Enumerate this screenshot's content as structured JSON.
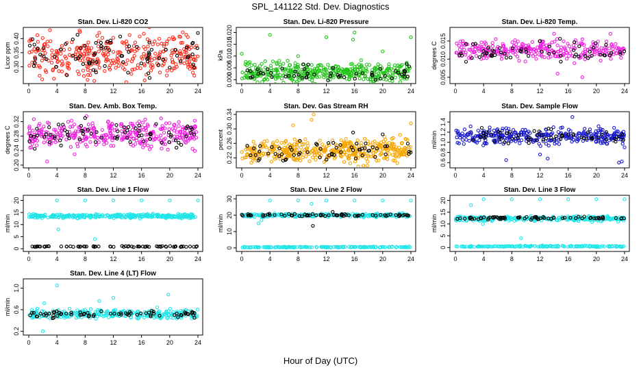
{
  "figure_title": "SPL_141122  Std. Dev. Diagnostics",
  "x_axis_label": "Hour of Day (UTC)",
  "chart_data": [
    {
      "type": "scatter",
      "title": "Stan. Dev. Li-820 CO2",
      "ylabel": "Licor ppm",
      "xlim": [
        0,
        24
      ],
      "ylim": [
        0.25,
        0.43
      ],
      "xticks": [
        0,
        4,
        8,
        12,
        16,
        20,
        24
      ],
      "yticks": [
        0.3,
        0.35,
        0.4
      ],
      "ytick_labels": [
        "0.30",
        "0.35",
        "0.40"
      ],
      "series": [
        {
          "color": "#ff2a1a",
          "role": "main",
          "center": 0.34,
          "spread": 0.04,
          "n": 340,
          "outliers": [
            [
              9.3,
              0.25
            ],
            [
              3,
              0.43
            ]
          ]
        },
        {
          "color": "#000000",
          "role": "overlay",
          "center": 0.34,
          "spread": 0.03,
          "n": 80,
          "outliers": [
            [
              24,
              0.42
            ]
          ]
        }
      ]
    },
    {
      "type": "scatter",
      "title": "Stan. Dev. Li-820 Pressure",
      "ylabel": "kPa",
      "xlim": [
        0,
        24
      ],
      "ylim": [
        -0.0005,
        0.021
      ],
      "xticks": [
        0,
        4,
        8,
        12,
        16,
        20,
        24
      ],
      "yticks": [
        0.0,
        0.005,
        0.01,
        0.015,
        0.02
      ],
      "ytick_labels": [
        "0.000",
        "0.005",
        "0.010",
        "0.015",
        "0.020"
      ],
      "series": [
        {
          "color": "#22c41a",
          "role": "main",
          "center": 0.003,
          "spread": 0.002,
          "n": 420,
          "outliers": [
            [
              0,
              0.011
            ],
            [
              4,
              0.019
            ],
            [
              8,
              0.01
            ],
            [
              12,
              0.018
            ],
            [
              15.8,
              0.017
            ],
            [
              16,
              0.02
            ],
            [
              20,
              0.012
            ],
            [
              24,
              0.018
            ]
          ]
        },
        {
          "color": "#000000",
          "role": "overlay",
          "center": 0.002,
          "spread": 0.002,
          "n": 60,
          "outliers": []
        }
      ]
    },
    {
      "type": "scatter",
      "title": "Stan. Dev. Li-820 Temp.",
      "ylabel": "degrees C",
      "xlim": [
        0,
        24
      ],
      "ylim": [
        0.004,
        0.018
      ],
      "xticks": [
        0,
        4,
        8,
        12,
        16,
        20,
        24
      ],
      "yticks": [
        0.005,
        0.01,
        0.015
      ],
      "ytick_labels": [
        "0.005",
        "0.010",
        "0.015"
      ],
      "series": [
        {
          "color": "#f020e0",
          "role": "main",
          "center": 0.0125,
          "spread": 0.0012,
          "n": 300,
          "outliers": [
            [
              14,
              0.017
            ],
            [
              14.5,
              0.006
            ],
            [
              18,
              0.005
            ],
            [
              22,
              0.017
            ]
          ]
        },
        {
          "color": "#000000",
          "role": "overlay",
          "center": 0.012,
          "spread": 0.0012,
          "n": 60,
          "outliers": [
            [
              12,
              0.015
            ]
          ]
        }
      ]
    },
    {
      "type": "scatter",
      "title": "Stan. Dev. Amb. Box Temp.",
      "ylabel": "degrees C",
      "xlim": [
        0,
        24
      ],
      "ylim": [
        0.2,
        0.34
      ],
      "xticks": [
        0,
        4,
        8,
        12,
        16,
        20,
        24
      ],
      "yticks": [
        0.2,
        0.24,
        0.28,
        0.32
      ],
      "ytick_labels": [
        "0.20",
        "0.24",
        "0.28",
        "0.32"
      ],
      "series": [
        {
          "color": "#f020e0",
          "role": "main",
          "center": 0.285,
          "spread": 0.018,
          "n": 340,
          "outliers": [
            [
              2.6,
              0.21
            ],
            [
              6.5,
              0.23
            ],
            [
              8.2,
              0.335
            ]
          ]
        },
        {
          "color": "#000000",
          "role": "overlay",
          "center": 0.285,
          "spread": 0.015,
          "n": 70,
          "outliers": [
            [
              8,
              0.33
            ]
          ]
        }
      ]
    },
    {
      "type": "scatter",
      "title": "Stan. Dev. Gas Stream RH",
      "ylabel": "percent",
      "xlim": [
        0,
        24
      ],
      "ylim": [
        0.2,
        0.34
      ],
      "xticks": [
        0,
        4,
        8,
        12,
        16,
        20,
        24
      ],
      "yticks": [
        0.22,
        0.26,
        0.3,
        0.34
      ],
      "ytick_labels": [
        "0.22",
        "0.26",
        "0.30",
        "0.34"
      ],
      "series": [
        {
          "color": "#f5a500",
          "role": "main",
          "center": 0.24,
          "spread": 0.015,
          "n": 420,
          "outliers": [
            [
              7.3,
              0.31
            ],
            [
              9.9,
              0.325
            ],
            [
              10.2,
              0.34
            ],
            [
              24,
              0.315
            ]
          ]
        },
        {
          "color": "#000000",
          "role": "overlay",
          "center": 0.24,
          "spread": 0.012,
          "n": 60,
          "outliers": [
            [
              15.8,
              0.29
            ],
            [
              20,
              0.285
            ]
          ]
        }
      ]
    },
    {
      "type": "scatter",
      "title": "Stan. Dev. Sample Flow",
      "ylabel": "ml/min",
      "xlim": [
        0,
        24
      ],
      "ylim": [
        0.55,
        1.55
      ],
      "xticks": [
        0,
        4,
        8,
        12,
        16,
        20,
        24
      ],
      "yticks": [
        0.6,
        0.8,
        1.0,
        1.2,
        1.4
      ],
      "ytick_labels": [
        "0.6",
        "0.8",
        "1.0",
        "1.2",
        "1.4"
      ],
      "series": [
        {
          "color": "#1a1acc",
          "role": "main",
          "center": 1.12,
          "spread": 0.08,
          "n": 330,
          "outliers": [
            [
              7.2,
              0.65
            ],
            [
              12,
              0.76
            ],
            [
              13.1,
              0.68
            ],
            [
              16.6,
              1.5
            ],
            [
              23.2,
              0.6
            ],
            [
              23.6,
              0.62
            ],
            [
              24,
              0.9
            ]
          ]
        },
        {
          "color": "#000000",
          "role": "overlay",
          "center": 1.12,
          "spread": 0.06,
          "n": 60,
          "outliers": [
            [
              13.2,
              1.27
            ]
          ]
        }
      ]
    },
    {
      "type": "scatter",
      "title": "Stan. Dev. Line 1 Flow",
      "ylabel": "ml/min",
      "xlim": [
        0,
        24
      ],
      "ylim": [
        0,
        21
      ],
      "xticks": [
        0,
        4,
        8,
        12,
        16,
        20,
        24
      ],
      "yticks": [
        0,
        5,
        10,
        15,
        20
      ],
      "ytick_labels": [
        "0",
        "5",
        "10",
        "15",
        "20"
      ],
      "series": [
        {
          "color": "#22e5e8",
          "role": "main",
          "center": 13.5,
          "spread": 0.4,
          "n": 330,
          "outliers": [
            [
              4,
              20
            ],
            [
              8,
              20
            ],
            [
              12,
              20
            ],
            [
              16,
              20
            ],
            [
              20,
              20
            ],
            [
              24,
              20
            ],
            [
              4.2,
              8
            ],
            [
              9.4,
              4
            ]
          ]
        },
        {
          "color": "#000000",
          "role": "overlay",
          "center": 0.9,
          "spread": 0.1,
          "n": 70,
          "outliers": []
        }
      ]
    },
    {
      "type": "scatter",
      "title": "Stan. Dev. Line 2 Flow",
      "ylabel": "ml/min",
      "xlim": [
        0,
        24
      ],
      "ylim": [
        -0.5,
        30.5
      ],
      "xticks": [
        0,
        4,
        8,
        12,
        16,
        20,
        24
      ],
      "yticks": [
        0,
        10,
        20,
        30
      ],
      "ytick_labels": [
        "0",
        "10",
        "20",
        "30"
      ],
      "series": [
        {
          "color": "#22e5e8",
          "role": "main",
          "center": 20,
          "spread": 0.5,
          "n": 280,
          "outliers": [
            [
              2.4,
              15
            ],
            [
              2.8,
              17
            ],
            [
              4,
              29
            ],
            [
              8,
              29
            ],
            [
              12,
              29
            ],
            [
              16,
              29
            ],
            [
              20,
              29
            ],
            [
              24,
              29
            ],
            [
              9.9,
              27
            ]
          ]
        },
        {
          "color": "#22e5e8",
          "role": "main",
          "center": 0.5,
          "spread": 0.15,
          "n": 160,
          "outliers": []
        },
        {
          "color": "#000000",
          "role": "overlay",
          "center": 20,
          "spread": 0.4,
          "n": 70,
          "outliers": [
            [
              10.1,
              13.5
            ],
            [
              12.9,
              22
            ]
          ]
        }
      ]
    },
    {
      "type": "scatter",
      "title": "Stan. Dev. Line 3 Flow",
      "ylabel": "ml/min",
      "xlim": [
        0,
        24
      ],
      "ylim": [
        -0.5,
        21
      ],
      "xticks": [
        0,
        4,
        8,
        12,
        16,
        20,
        24
      ],
      "yticks": [
        0,
        5,
        10,
        15,
        20
      ],
      "ytick_labels": [
        "0",
        "5",
        "10",
        "15",
        "20"
      ],
      "series": [
        {
          "color": "#22e5e8",
          "role": "main",
          "center": 12.3,
          "spread": 0.5,
          "n": 280,
          "outliers": [
            [
              2.2,
              18
            ],
            [
              4,
              20.5
            ],
            [
              8,
              20.5
            ],
            [
              12,
              20.5
            ],
            [
              16,
              20.5
            ],
            [
              20,
              20.5
            ],
            [
              24,
              20.5
            ],
            [
              3.9,
              10
            ],
            [
              9.3,
              4
            ]
          ]
        },
        {
          "color": "#22e5e8",
          "role": "main",
          "center": 0.5,
          "spread": 0.15,
          "n": 160,
          "outliers": []
        },
        {
          "color": "#000000",
          "role": "overlay",
          "center": 12.5,
          "spread": 0.3,
          "n": 70,
          "outliers": []
        }
      ]
    },
    {
      "type": "scatter",
      "title": "Stan. Dev. Line 4 (LT) Flow",
      "ylabel": "ml/min",
      "xlim": [
        0,
        24
      ],
      "ylim": [
        0.18,
        1.12
      ],
      "xticks": [
        0,
        4,
        8,
        12,
        16,
        20,
        24
      ],
      "yticks": [
        0.2,
        0.6,
        1.0
      ],
      "ytick_labels": [
        "0.2",
        "0.6",
        "1.0"
      ],
      "series": [
        {
          "color": "#22e5e8",
          "role": "main",
          "center": 0.52,
          "spread": 0.04,
          "n": 300,
          "outliers": [
            [
              2,
              0.2
            ],
            [
              4,
              1.05
            ],
            [
              12,
              0.82
            ],
            [
              19.8,
              0.88
            ],
            [
              2.2,
              0.72
            ],
            [
              10,
              0.76
            ],
            [
              1.2,
              0.62
            ]
          ]
        },
        {
          "color": "#000000",
          "role": "overlay",
          "center": 0.52,
          "spread": 0.03,
          "n": 70,
          "outliers": []
        }
      ]
    }
  ]
}
